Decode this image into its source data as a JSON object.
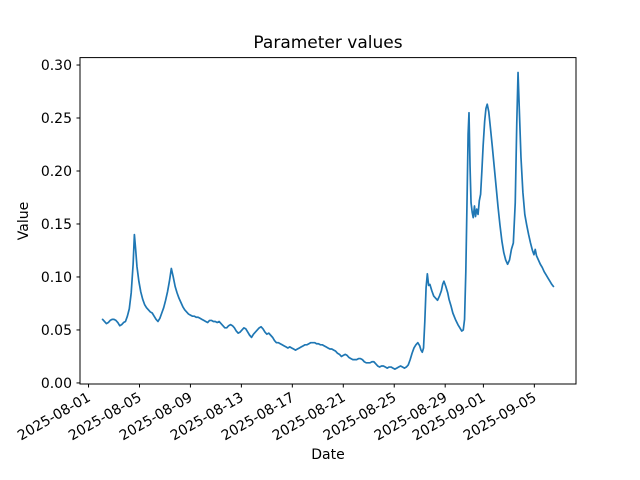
{
  "chart_data": {
    "type": "line",
    "title": "Parameter values",
    "xlabel": "Date",
    "ylabel": "Value",
    "x_unit": "days since 2025-08-01",
    "x_start_date": "2025-08-01",
    "line_color": "#1f77b4",
    "background_color": "#ffffff",
    "grid": false,
    "legend": null,
    "x_tick_rotation_deg": 30,
    "x_ticks": [
      {
        "d": 0,
        "label": "2025-08-01"
      },
      {
        "d": 4,
        "label": "2025-08-05"
      },
      {
        "d": 8,
        "label": "2025-08-09"
      },
      {
        "d": 12,
        "label": "2025-08-13"
      },
      {
        "d": 16,
        "label": "2025-08-17"
      },
      {
        "d": 20,
        "label": "2025-08-21"
      },
      {
        "d": 24,
        "label": "2025-08-25"
      },
      {
        "d": 28,
        "label": "2025-08-29"
      },
      {
        "d": 31,
        "label": "2025-09-01"
      },
      {
        "d": 35,
        "label": "2025-09-05"
      }
    ],
    "y_ticks": [
      {
        "v": 0.0,
        "label": "0.00"
      },
      {
        "v": 0.05,
        "label": "0.05"
      },
      {
        "v": 0.1,
        "label": "0.10"
      },
      {
        "v": 0.15,
        "label": "0.15"
      },
      {
        "v": 0.2,
        "label": "0.20"
      },
      {
        "v": 0.25,
        "label": "0.25"
      },
      {
        "v": 0.3,
        "label": "0.30"
      }
    ],
    "series": [
      {
        "name": "Parameter value",
        "color": "#1f77b4",
        "points": [
          [
            1.1,
            0.06
          ],
          [
            1.25,
            0.058
          ],
          [
            1.4,
            0.056
          ],
          [
            1.55,
            0.057
          ],
          [
            1.7,
            0.059
          ],
          [
            1.85,
            0.06
          ],
          [
            2.0,
            0.06
          ],
          [
            2.15,
            0.059
          ],
          [
            2.3,
            0.057
          ],
          [
            2.45,
            0.054
          ],
          [
            2.6,
            0.055
          ],
          [
            2.75,
            0.057
          ],
          [
            2.9,
            0.058
          ],
          [
            3.05,
            0.063
          ],
          [
            3.2,
            0.07
          ],
          [
            3.35,
            0.085
          ],
          [
            3.5,
            0.112
          ],
          [
            3.6,
            0.14
          ],
          [
            3.7,
            0.126
          ],
          [
            3.8,
            0.11
          ],
          [
            3.95,
            0.096
          ],
          [
            4.1,
            0.086
          ],
          [
            4.25,
            0.079
          ],
          [
            4.4,
            0.074
          ],
          [
            4.55,
            0.071
          ],
          [
            4.7,
            0.069
          ],
          [
            4.85,
            0.067
          ],
          [
            5.0,
            0.066
          ],
          [
            5.15,
            0.063
          ],
          [
            5.3,
            0.06
          ],
          [
            5.45,
            0.058
          ],
          [
            5.6,
            0.061
          ],
          [
            5.75,
            0.066
          ],
          [
            5.9,
            0.071
          ],
          [
            6.05,
            0.078
          ],
          [
            6.2,
            0.086
          ],
          [
            6.35,
            0.096
          ],
          [
            6.5,
            0.108
          ],
          [
            6.65,
            0.1
          ],
          [
            6.8,
            0.091
          ],
          [
            6.95,
            0.085
          ],
          [
            7.1,
            0.08
          ],
          [
            7.25,
            0.076
          ],
          [
            7.4,
            0.072
          ],
          [
            7.55,
            0.069
          ],
          [
            7.7,
            0.067
          ],
          [
            7.85,
            0.065
          ],
          [
            8.0,
            0.064
          ],
          [
            8.15,
            0.063
          ],
          [
            8.3,
            0.063
          ],
          [
            8.45,
            0.062
          ],
          [
            8.6,
            0.062
          ],
          [
            8.75,
            0.061
          ],
          [
            8.9,
            0.06
          ],
          [
            9.05,
            0.059
          ],
          [
            9.2,
            0.058
          ],
          [
            9.35,
            0.057
          ],
          [
            9.5,
            0.059
          ],
          [
            9.65,
            0.059
          ],
          [
            9.8,
            0.058
          ],
          [
            9.95,
            0.058
          ],
          [
            10.1,
            0.057
          ],
          [
            10.25,
            0.058
          ],
          [
            10.4,
            0.056
          ],
          [
            10.55,
            0.054
          ],
          [
            10.7,
            0.052
          ],
          [
            10.85,
            0.052
          ],
          [
            11.0,
            0.054
          ],
          [
            11.15,
            0.055
          ],
          [
            11.3,
            0.054
          ],
          [
            11.45,
            0.052
          ],
          [
            11.6,
            0.049
          ],
          [
            11.75,
            0.047
          ],
          [
            11.9,
            0.048
          ],
          [
            12.05,
            0.05
          ],
          [
            12.2,
            0.052
          ],
          [
            12.35,
            0.051
          ],
          [
            12.5,
            0.048
          ],
          [
            12.65,
            0.045
          ],
          [
            12.8,
            0.043
          ],
          [
            12.95,
            0.046
          ],
          [
            13.1,
            0.048
          ],
          [
            13.25,
            0.05
          ],
          [
            13.4,
            0.052
          ],
          [
            13.55,
            0.053
          ],
          [
            13.7,
            0.051
          ],
          [
            13.85,
            0.048
          ],
          [
            14.0,
            0.046
          ],
          [
            14.15,
            0.047
          ],
          [
            14.3,
            0.045
          ],
          [
            14.45,
            0.043
          ],
          [
            14.6,
            0.04
          ],
          [
            14.75,
            0.038
          ],
          [
            14.9,
            0.038
          ],
          [
            15.05,
            0.037
          ],
          [
            15.2,
            0.036
          ],
          [
            15.35,
            0.035
          ],
          [
            15.5,
            0.034
          ],
          [
            15.65,
            0.033
          ],
          [
            15.8,
            0.034
          ],
          [
            15.95,
            0.033
          ],
          [
            16.1,
            0.032
          ],
          [
            16.25,
            0.031
          ],
          [
            16.4,
            0.032
          ],
          [
            16.55,
            0.033
          ],
          [
            16.7,
            0.034
          ],
          [
            16.85,
            0.035
          ],
          [
            17.0,
            0.036
          ],
          [
            17.15,
            0.036
          ],
          [
            17.3,
            0.037
          ],
          [
            17.45,
            0.038
          ],
          [
            17.6,
            0.038
          ],
          [
            17.75,
            0.038
          ],
          [
            17.9,
            0.037
          ],
          [
            18.05,
            0.037
          ],
          [
            18.2,
            0.036
          ],
          [
            18.35,
            0.036
          ],
          [
            18.5,
            0.035
          ],
          [
            18.65,
            0.034
          ],
          [
            18.8,
            0.033
          ],
          [
            18.95,
            0.032
          ],
          [
            19.1,
            0.032
          ],
          [
            19.25,
            0.031
          ],
          [
            19.4,
            0.03
          ],
          [
            19.55,
            0.028
          ],
          [
            19.7,
            0.027
          ],
          [
            19.85,
            0.025
          ],
          [
            20.0,
            0.026
          ],
          [
            20.15,
            0.027
          ],
          [
            20.3,
            0.026
          ],
          [
            20.45,
            0.024
          ],
          [
            20.6,
            0.023
          ],
          [
            20.75,
            0.022
          ],
          [
            20.9,
            0.022
          ],
          [
            21.05,
            0.022
          ],
          [
            21.2,
            0.023
          ],
          [
            21.35,
            0.023
          ],
          [
            21.5,
            0.022
          ],
          [
            21.65,
            0.02
          ],
          [
            21.8,
            0.019
          ],
          [
            21.95,
            0.019
          ],
          [
            22.1,
            0.019
          ],
          [
            22.25,
            0.02
          ],
          [
            22.4,
            0.02
          ],
          [
            22.55,
            0.018
          ],
          [
            22.7,
            0.016
          ],
          [
            22.85,
            0.015
          ],
          [
            23.0,
            0.016
          ],
          [
            23.15,
            0.016
          ],
          [
            23.3,
            0.015
          ],
          [
            23.45,
            0.014
          ],
          [
            23.6,
            0.015
          ],
          [
            23.75,
            0.015
          ],
          [
            23.9,
            0.014
          ],
          [
            24.05,
            0.013
          ],
          [
            24.2,
            0.014
          ],
          [
            24.35,
            0.015
          ],
          [
            24.5,
            0.016
          ],
          [
            24.65,
            0.015
          ],
          [
            24.8,
            0.014
          ],
          [
            24.95,
            0.015
          ],
          [
            25.1,
            0.017
          ],
          [
            25.25,
            0.022
          ],
          [
            25.4,
            0.028
          ],
          [
            25.55,
            0.033
          ],
          [
            25.7,
            0.036
          ],
          [
            25.85,
            0.038
          ],
          [
            26.0,
            0.035
          ],
          [
            26.1,
            0.031
          ],
          [
            26.2,
            0.029
          ],
          [
            26.3,
            0.033
          ],
          [
            26.4,
            0.058
          ],
          [
            26.5,
            0.09
          ],
          [
            26.6,
            0.103
          ],
          [
            26.7,
            0.092
          ],
          [
            26.8,
            0.093
          ],
          [
            26.95,
            0.087
          ],
          [
            27.1,
            0.082
          ],
          [
            27.25,
            0.08
          ],
          [
            27.4,
            0.078
          ],
          [
            27.55,
            0.082
          ],
          [
            27.7,
            0.087
          ],
          [
            27.8,
            0.093
          ],
          [
            27.9,
            0.096
          ],
          [
            28.05,
            0.091
          ],
          [
            28.2,
            0.085
          ],
          [
            28.3,
            0.079
          ],
          [
            28.45,
            0.073
          ],
          [
            28.6,
            0.066
          ],
          [
            28.8,
            0.06
          ],
          [
            29.0,
            0.055
          ],
          [
            29.15,
            0.052
          ],
          [
            29.3,
            0.049
          ],
          [
            29.42,
            0.05
          ],
          [
            29.52,
            0.06
          ],
          [
            29.62,
            0.105
          ],
          [
            29.72,
            0.175
          ],
          [
            29.8,
            0.235
          ],
          [
            29.87,
            0.255
          ],
          [
            29.95,
            0.205
          ],
          [
            30.03,
            0.17
          ],
          [
            30.12,
            0.161
          ],
          [
            30.2,
            0.156
          ],
          [
            30.3,
            0.167
          ],
          [
            30.38,
            0.157
          ],
          [
            30.48,
            0.164
          ],
          [
            30.58,
            0.159
          ],
          [
            30.68,
            0.172
          ],
          [
            30.78,
            0.178
          ],
          [
            30.88,
            0.2
          ],
          [
            30.98,
            0.224
          ],
          [
            31.1,
            0.247
          ],
          [
            31.2,
            0.259
          ],
          [
            31.3,
            0.263
          ],
          [
            31.42,
            0.256
          ],
          [
            31.55,
            0.241
          ],
          [
            31.7,
            0.223
          ],
          [
            31.85,
            0.204
          ],
          [
            32.0,
            0.185
          ],
          [
            32.15,
            0.166
          ],
          [
            32.3,
            0.149
          ],
          [
            32.45,
            0.134
          ],
          [
            32.6,
            0.123
          ],
          [
            32.75,
            0.116
          ],
          [
            32.9,
            0.112
          ],
          [
            33.05,
            0.116
          ],
          [
            33.2,
            0.126
          ],
          [
            33.35,
            0.132
          ],
          [
            33.5,
            0.17
          ],
          [
            33.62,
            0.245
          ],
          [
            33.72,
            0.293
          ],
          [
            33.82,
            0.258
          ],
          [
            33.95,
            0.213
          ],
          [
            34.1,
            0.18
          ],
          [
            34.25,
            0.159
          ],
          [
            34.4,
            0.149
          ],
          [
            34.55,
            0.14
          ],
          [
            34.7,
            0.132
          ],
          [
            34.85,
            0.125
          ],
          [
            34.97,
            0.121
          ],
          [
            35.07,
            0.126
          ],
          [
            35.17,
            0.12
          ],
          [
            35.32,
            0.116
          ],
          [
            35.47,
            0.112
          ],
          [
            35.62,
            0.109
          ],
          [
            35.77,
            0.105
          ],
          [
            35.92,
            0.102
          ],
          [
            36.07,
            0.099
          ],
          [
            36.22,
            0.096
          ],
          [
            36.37,
            0.093
          ],
          [
            36.5,
            0.091
          ]
        ]
      }
    ]
  }
}
